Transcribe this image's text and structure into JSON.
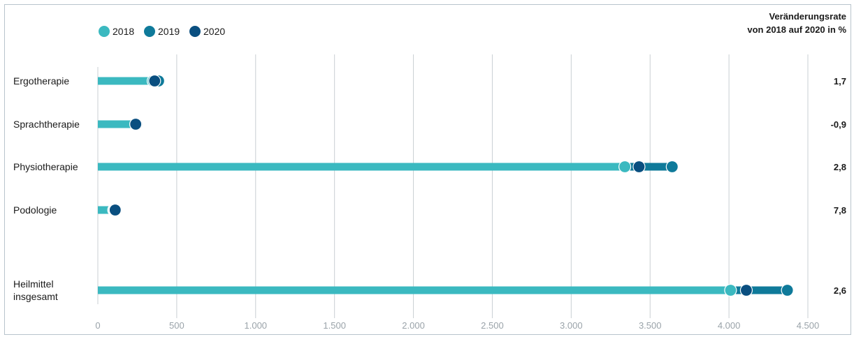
{
  "chart_data": {
    "type": "dumbbell",
    "title": "",
    "xlabel": "",
    "ylabel": "",
    "xlim": [
      0,
      4500
    ],
    "x_ticks": [
      "0",
      "500",
      "1.000",
      "1.500",
      "2.000",
      "2.500",
      "3.000",
      "3.500",
      "4.000",
      "4.500"
    ],
    "x_tick_values": [
      0,
      500,
      1000,
      1500,
      2000,
      2500,
      3000,
      3500,
      4000,
      4500
    ],
    "grid": true,
    "legend_position": "top-left",
    "rate_header": [
      "Veränderungsrate",
      "von 2018 auf 2020 in %"
    ],
    "series": [
      {
        "name": "2018",
        "color": "#3bb9c0"
      },
      {
        "name": "2019",
        "color": "#0f7a9a"
      },
      {
        "name": "2020",
        "color": "#0a4f80"
      }
    ],
    "categories": [
      {
        "label": [
          "Ergotherapie"
        ],
        "values": [
          350,
          385,
          360
        ],
        "rate": "1,7"
      },
      {
        "label": [
          "Sprachtherapie"
        ],
        "values": [
          240,
          245,
          240
        ],
        "rate": "-0,9"
      },
      {
        "label": [
          "Physiotherapie"
        ],
        "values": [
          3340,
          3640,
          3430
        ],
        "rate": "2,8"
      },
      {
        "label": [
          "Podologie"
        ],
        "values": [
          100,
          105,
          110
        ],
        "rate": "7,8"
      },
      {
        "label": [
          "Heilmittel",
          "insgesamt"
        ],
        "values": [
          4010,
          4370,
          4110
        ],
        "rate": "2,6"
      }
    ]
  }
}
